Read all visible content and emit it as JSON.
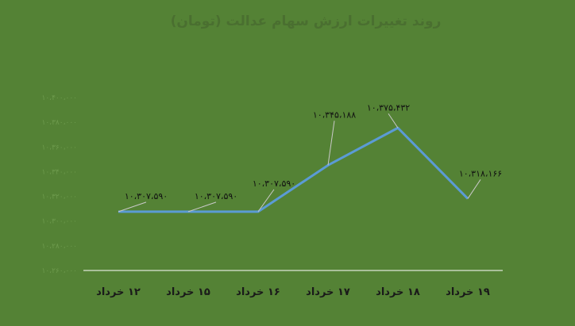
{
  "chart_data": {
    "type": "line",
    "title": "روند تغییرات ارزش سهام عدالت (تومان)",
    "categories": [
      "۱۲ خرداد",
      "۱۵ خرداد",
      "۱۶ خرداد",
      "۱۷ خرداد",
      "۱۸ خرداد",
      "۱۹ خرداد"
    ],
    "series": [
      {
        "values": [
          10307590,
          10307590,
          10307590,
          10345188,
          10375432,
          10318166
        ]
      }
    ],
    "data_labels": [
      "۱۰،۳۰۷،۵۹۰",
      "۱۰،۳۰۷،۵۹۰",
      "۱۰،۳۰۷،۵۹۰",
      "۱۰،۳۴۵،۱۸۸",
      "۱۰،۳۷۵،۴۳۲",
      "۱۰،۳۱۸،۱۶۶"
    ],
    "y_ticks": [
      10260000,
      10280000,
      10300000,
      10320000,
      10340000,
      10360000,
      10380000,
      10400000
    ],
    "y_tick_labels": [
      "۱۰،۲۶۰،۰۰۰",
      "۱۰،۲۸۰،۰۰۰",
      "۱۰،۳۰۰،۰۰۰",
      "۱۰،۳۲۰،۰۰۰",
      "۱۰،۳۴۰،۰۰۰",
      "۱۰،۳۶۰،۰۰۰",
      "۱۰،۳۸۰،۰۰۰",
      "۱۰،۴۰۰،۰۰۰"
    ],
    "ylim": [
      10260000,
      10400000
    ],
    "xlabel": "",
    "ylabel": "",
    "grid": false,
    "legend": "none",
    "colors": {
      "background": "#548235",
      "line": "#5b9bd5",
      "axis": "#ffffff"
    }
  }
}
